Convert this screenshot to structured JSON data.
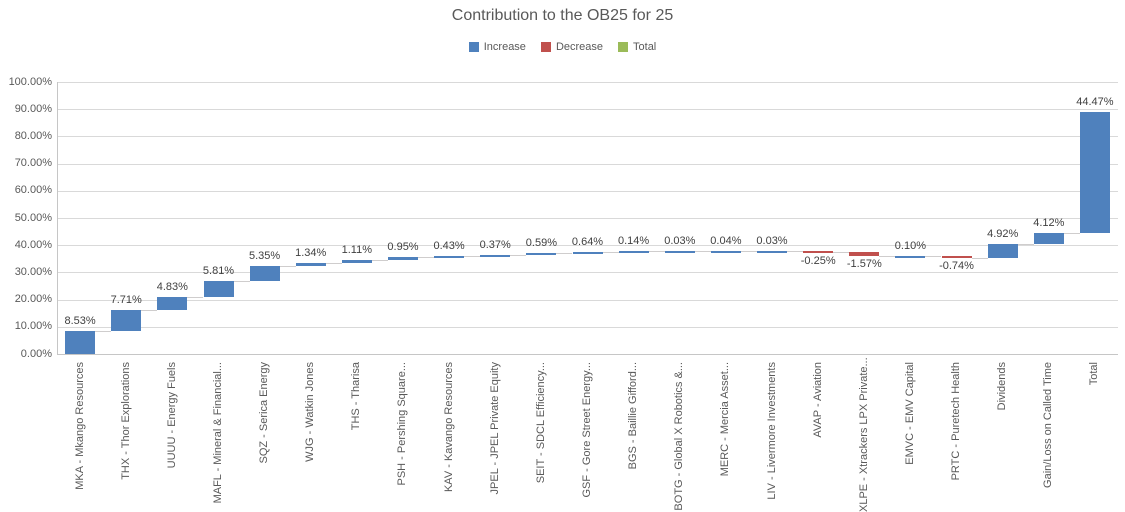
{
  "title": "Contribution to the OB25 for 25",
  "legend": {
    "items": [
      {
        "label": "Increase",
        "color": "#4F81BD"
      },
      {
        "label": "Decrease",
        "color": "#C0504D"
      },
      {
        "label": "Total",
        "color": "#9BBB59"
      }
    ]
  },
  "chart_data": {
    "type": "bar",
    "subtype": "waterfall",
    "title": "Contribution to the OB25 for 25",
    "legend_position": "top",
    "grid": true,
    "ylim": [
      0,
      100
    ],
    "y_ticks": [
      "0.00%",
      "10.00%",
      "20.00%",
      "30.00%",
      "40.00%",
      "50.00%",
      "60.00%",
      "70.00%",
      "80.00%",
      "90.00%",
      "100.00%"
    ],
    "categories": [
      "MKA - Mkango Resources",
      "THX - Thor Explorations",
      "UUUU - Energy Fuels",
      "MAFL - Mineral & Financial...",
      "SQZ - Serica Energy",
      "WJG - Watkin Jones",
      "THS - Tharisa",
      "PSH - Pershing Square...",
      "KAV - Kavango Resources",
      "JPEL - JPEL Private Equity",
      "SEIT - SDCL Efficiency...",
      "GSF - Gore Street Energy...",
      "BGS - Baillie Gifford...",
      "BOTG - Global X Robotics &...",
      "MERC - Mercia Asset...",
      "LIV - Livermore Investments",
      "AVAP - Aviation",
      "XLPE - Xtrackers LPX Private...",
      "EMVC - EMV Capital",
      "PRTC - Puretech Health",
      "Dividends",
      "Gain/Loss on Called Time",
      "Total"
    ],
    "values": [
      8.53,
      7.71,
      4.83,
      5.81,
      5.35,
      1.34,
      1.11,
      0.95,
      0.43,
      0.37,
      0.59,
      0.64,
      0.14,
      0.03,
      0.04,
      0.03,
      -0.25,
      -1.57,
      0.1,
      -0.74,
      4.92,
      4.12,
      44.47
    ],
    "labels": [
      "8.53%",
      "7.71%",
      "4.83%",
      "5.81%",
      "5.35%",
      "1.34%",
      "1.11%",
      "0.95%",
      "0.43%",
      "0.37%",
      "0.59%",
      "0.64%",
      "0.14%",
      "0.03%",
      "0.04%",
      "0.03%",
      "-0.25%",
      "-1.57%",
      "0.10%",
      "-0.74%",
      "4.92%",
      "4.12%",
      "44.47%"
    ]
  },
  "colors": {
    "increase": "#4F81BD",
    "decrease": "#C0504D",
    "total": "#9BBB59",
    "grid": "#D9D9D9",
    "axis": "#C6C6C6",
    "connector": "#CFCDCD",
    "axis_text": "#595959",
    "label_text": "#404040",
    "title_text": "#595959"
  }
}
